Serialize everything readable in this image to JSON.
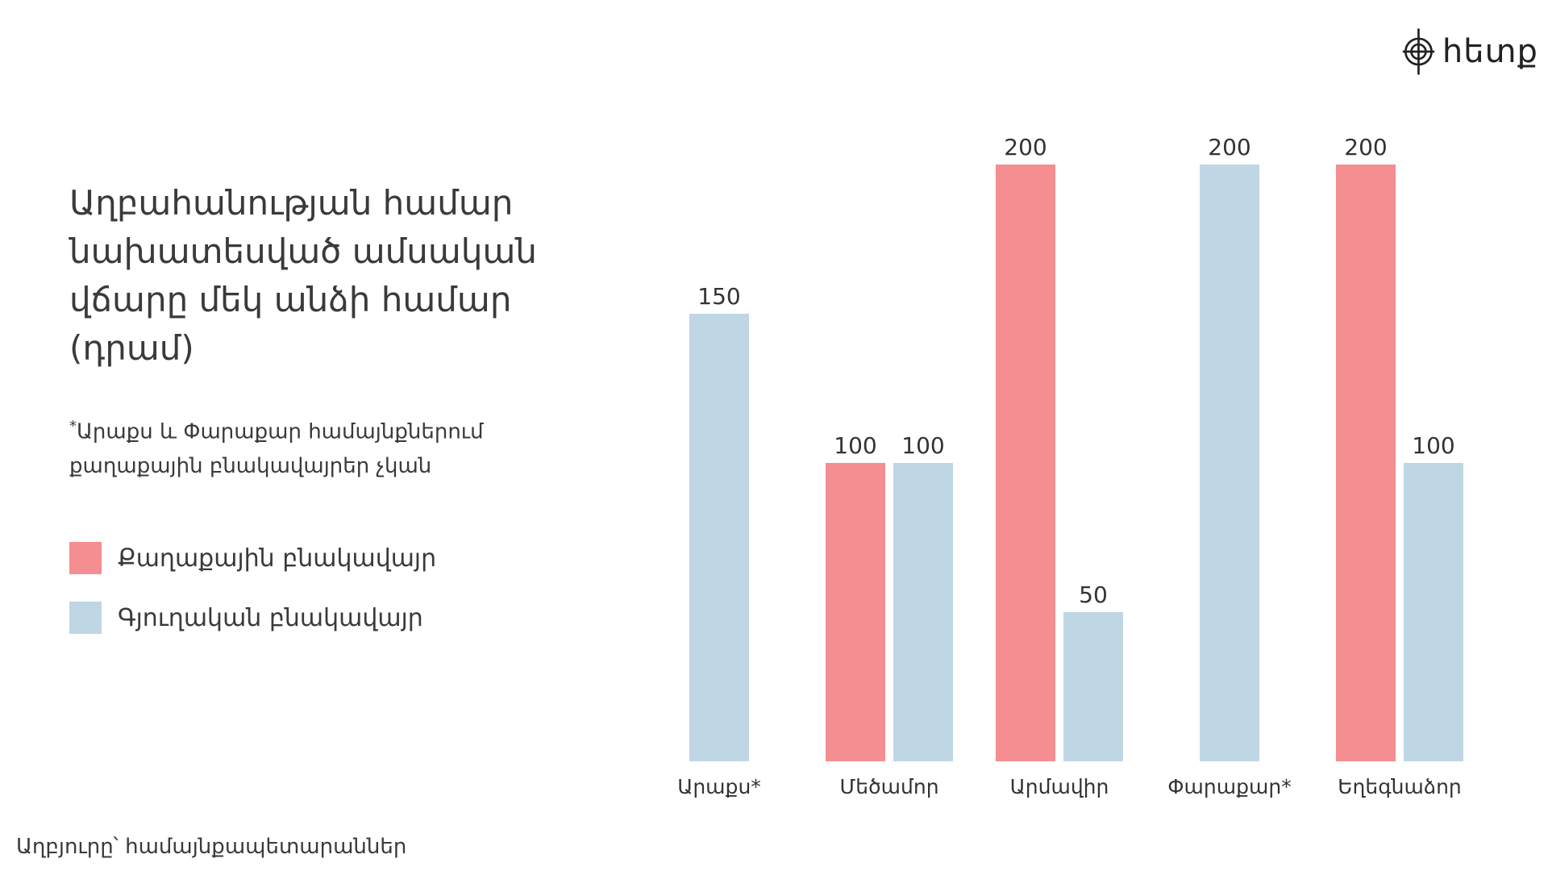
{
  "logo": {
    "text": "հետք",
    "icon": "circle-crosshair-logo-icon"
  },
  "title": "Աղբահանության համար նախատեսված ամսական վճարը մեկ անձի համար (դրամ)",
  "footnote": {
    "marker": "*",
    "text": "Արաքս և Փարաքար համայնքներում քաղաքային բնակավայրեր չկան"
  },
  "source": "Աղբյուրը՝ համայնքապետարաններ",
  "colors": {
    "urban": "#f48e91",
    "rural": "#bfd6e5",
    "text": "#333333"
  },
  "chart_data": {
    "type": "bar",
    "title": "Աղբահանության համար նախատեսված ամսական վճարը մեկ անձի համար (դրամ)",
    "categories": [
      "Արաքս*",
      "Մեծամոր",
      "Արմավիր",
      "Փարաքար*",
      "Եղեգնաձոր"
    ],
    "series": [
      {
        "name": "Քաղաքային բնակավայր",
        "color": "#f48e91",
        "values": [
          null,
          100,
          200,
          null,
          200
        ]
      },
      {
        "name": "Գյուղական բնակավայր",
        "color": "#bfd6e5",
        "values": [
          150,
          100,
          50,
          200,
          100
        ]
      }
    ],
    "ylim": [
      0,
      200
    ],
    "grid": false,
    "legend": "left",
    "data_labels": true
  }
}
